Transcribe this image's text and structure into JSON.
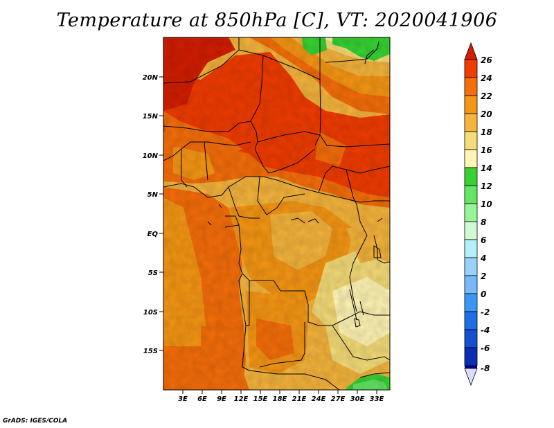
{
  "title": "Temperature at 850hPa [C], VT: 2020041906",
  "credit": "GrADS: IGES/COLA",
  "map": {
    "lon_range": [
      0,
      35
    ],
    "lat_range": [
      -20,
      25
    ],
    "lat_labels": [
      "20N",
      "15N",
      "10N",
      "5N",
      "EQ",
      "5S",
      "10S",
      "15S"
    ],
    "lat_values": [
      20,
      15,
      10,
      5,
      0,
      -5,
      -10,
      -15
    ],
    "lon_labels": [
      "3E",
      "6E",
      "9E",
      "12E",
      "15E",
      "18E",
      "21E",
      "24E",
      "27E",
      "30E",
      "33E"
    ],
    "lon_values": [
      3,
      6,
      9,
      12,
      15,
      18,
      21,
      24,
      27,
      30,
      33
    ]
  },
  "colorbar": {
    "labels": [
      "26",
      "24",
      "22",
      "20",
      "18",
      "16",
      "14",
      "12",
      "10",
      "8",
      "6",
      "4",
      "2",
      "0",
      "-2",
      "-4",
      "-6",
      "-8"
    ],
    "colors": [
      "#d21e00",
      "#f03c00",
      "#f56e0a",
      "#f59614",
      "#f5b43c",
      "#f5dc78",
      "#fff5b4",
      "#37d232",
      "#64e664",
      "#96f596",
      "#d2fad2",
      "#b4f0fa",
      "#96d2fa",
      "#78b9fa",
      "#3c96f5",
      "#1e6ee6",
      "#1450d2",
      "#0a2db4",
      "#000082",
      "#dcdcff"
    ]
  }
}
